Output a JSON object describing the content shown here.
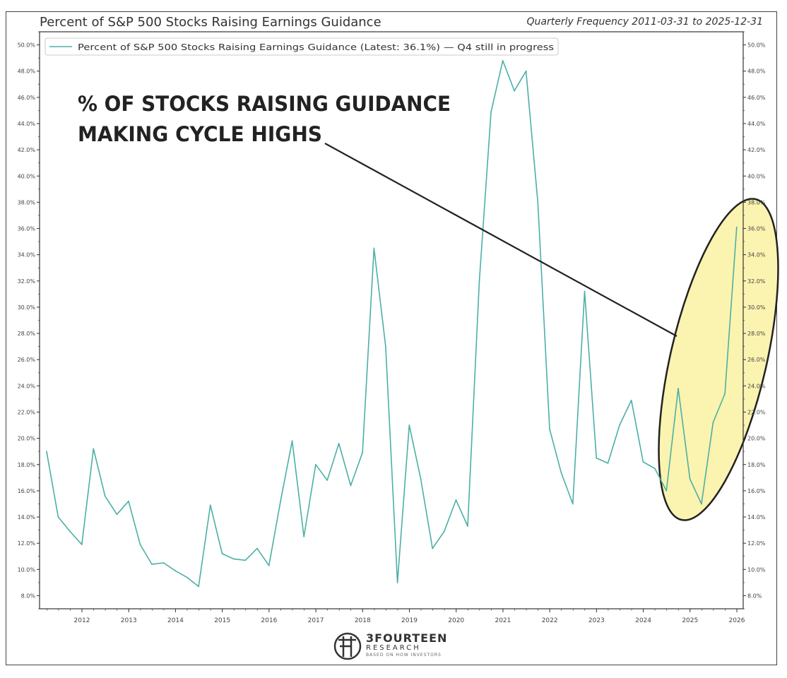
{
  "header": {
    "title": "Percent of S&P 500 Stocks Raising Earnings Guidance",
    "subtitle": "Quarterly Frequency 2011-03-31 to 2025-12-31"
  },
  "logo": {
    "name": "3FOURTEEN",
    "sub": "RESEARCH",
    "tagline": "BASED ON HOW INVESTORS"
  },
  "colors": {
    "line": "#4bb0a5",
    "highlight_fill": "#fbf3b0",
    "ellipse_stroke": "#222222",
    "annotation": "#222222",
    "axis": "#333333"
  },
  "chart_data": {
    "type": "line",
    "title": "Percent of S&P 500 Stocks Raising Earnings Guidance",
    "subtitle": "Quarterly Frequency 2011-03-31 to 2025-12-31",
    "ylim": [
      7.0,
      51.0
    ],
    "y_unit": "%",
    "y_ticks": [
      "8.0%",
      "10.0%",
      "12.0%",
      "14.0%",
      "16.0%",
      "18.0%",
      "20.0%",
      "22.0%",
      "24.0%",
      "26.0%",
      "28.0%",
      "30.0%",
      "32.0%",
      "34.0%",
      "36.0%",
      "38.0%",
      "40.0%",
      "42.0%",
      "44.0%",
      "46.0%",
      "48.0%",
      "50.0%"
    ],
    "x_ticks": [
      "2012",
      "2013",
      "2014",
      "2015",
      "2016",
      "2017",
      "2018",
      "2019",
      "2020",
      "2021",
      "2022",
      "2023",
      "2024",
      "2025",
      "2026"
    ],
    "grid": false,
    "legend": {
      "position": "top-left",
      "text": "Percent of S&P 500 Stocks Raising Earnings Guidance (Latest: 36.1%)",
      "note": "— Q4 still in progress"
    },
    "annotation": {
      "line1": "% OF STOCKS RAISING GUIDANCE",
      "line2": "MAKING CYCLE HIGHS"
    },
    "series": [
      {
        "name": "Percent of S&P 500 Stocks Raising Earnings Guidance",
        "x": [
          "2011-03-31",
          "2011-06-30",
          "2011-09-30",
          "2011-12-31",
          "2012-03-31",
          "2012-06-30",
          "2012-09-30",
          "2012-12-31",
          "2013-03-31",
          "2013-06-30",
          "2013-09-30",
          "2013-12-31",
          "2014-03-31",
          "2014-06-30",
          "2014-09-30",
          "2014-12-31",
          "2015-03-31",
          "2015-06-30",
          "2015-09-30",
          "2015-12-31",
          "2016-03-31",
          "2016-06-30",
          "2016-09-30",
          "2016-12-31",
          "2017-03-31",
          "2017-06-30",
          "2017-09-30",
          "2017-12-31",
          "2018-03-31",
          "2018-06-30",
          "2018-09-30",
          "2018-12-31",
          "2019-03-31",
          "2019-06-30",
          "2019-09-30",
          "2019-12-31",
          "2020-03-31",
          "2020-06-30",
          "2020-09-30",
          "2020-12-31",
          "2021-03-31",
          "2021-06-30",
          "2021-09-30",
          "2021-12-31",
          "2022-03-31",
          "2022-06-30",
          "2022-09-30",
          "2022-12-31",
          "2023-03-31",
          "2023-06-30",
          "2023-09-30",
          "2023-12-31",
          "2024-03-31",
          "2024-06-30",
          "2024-09-30",
          "2024-12-31",
          "2025-03-31",
          "2025-06-30",
          "2025-09-30",
          "2025-12-31"
        ],
        "values": [
          19.0,
          14.0,
          12.9,
          11.9,
          19.2,
          15.6,
          14.2,
          15.2,
          11.9,
          10.4,
          10.5,
          9.9,
          9.4,
          8.7,
          14.9,
          11.2,
          10.8,
          10.7,
          11.6,
          10.3,
          15.2,
          19.8,
          12.5,
          18.0,
          16.8,
          19.6,
          16.4,
          18.9,
          34.5,
          27.0,
          9.0,
          21.0,
          16.9,
          11.6,
          12.9,
          15.3,
          13.3,
          32.0,
          44.9,
          48.8,
          46.5,
          48.0,
          38.0,
          20.7,
          17.4,
          15.0,
          31.2,
          18.5,
          18.1,
          21.0,
          22.9,
          18.2,
          17.7,
          16.0,
          23.8,
          16.9,
          15.0,
          21.2,
          23.4,
          36.1
        ]
      }
    ]
  }
}
